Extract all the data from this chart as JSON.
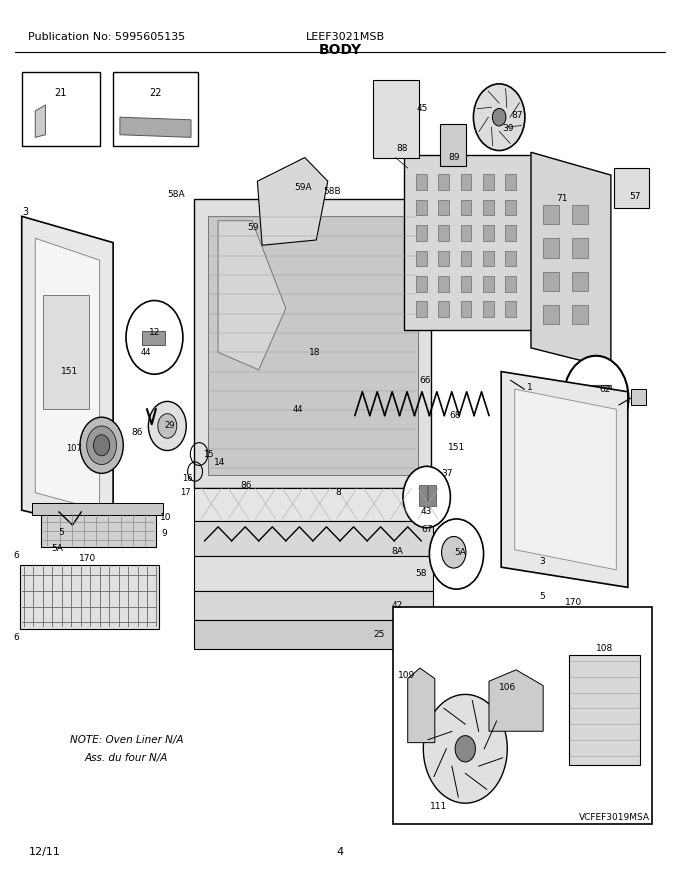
{
  "pub_no": "Publication No: 5995605135",
  "model": "LEEF3021MSB",
  "section": "BODY",
  "date": "12/11",
  "page": "4",
  "image_credit": "VCFEF3019MSA",
  "note_line1": "NOTE: Oven Liner N/A",
  "note_line2": "Ass. du four N/A",
  "bg_color": "#ffffff",
  "text_color": "#000000",
  "title_fontsize": 9,
  "header_fontsize": 8,
  "footer_fontsize": 8,
  "fig_width": 6.8,
  "fig_height": 8.8,
  "dpi": 100
}
